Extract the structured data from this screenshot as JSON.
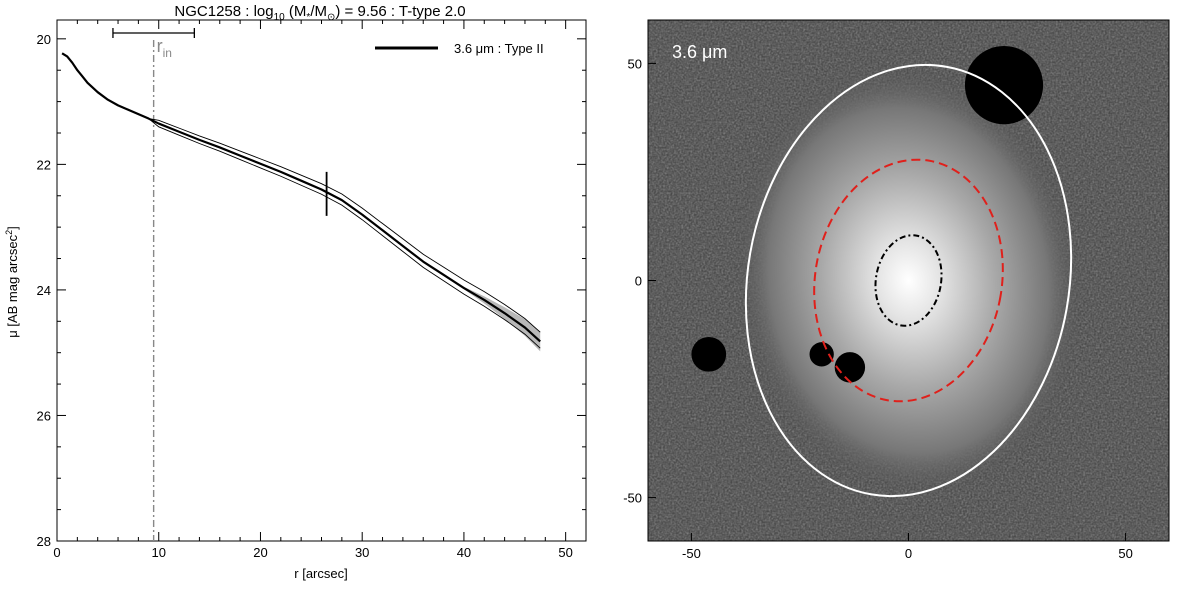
{
  "chart_data": [
    {
      "type": "line",
      "title_parts": {
        "prefix": "NGC1258 : log",
        "log_sub": "10",
        "mass_open": " (M",
        "mass_star_sub": "*",
        "mass_sep": "/M",
        "mass_sun_sub": "⊙",
        "suffix": ") = 9.56 : T-type 2.0"
      },
      "xlabel": "r [arcsec]",
      "ylabel_parts": {
        "main": "μ [AB mag arcsec",
        "sup": "2",
        "end": "]"
      },
      "xlim": [
        0,
        52
      ],
      "ylim": [
        28,
        19.7
      ],
      "y_inverted": true,
      "xticks": [
        "0",
        "10",
        "20",
        "30",
        "40",
        "50"
      ],
      "yticks": [
        "20",
        "22",
        "24",
        "26",
        "28"
      ],
      "legend": {
        "label": "3.6 μm : Type II",
        "position": "top-right"
      },
      "annotations": {
        "r_in_main": "r",
        "r_in_sub": "in",
        "r_in_value": 9.5,
        "r_in_range": [
          5.5,
          13.5
        ],
        "break_radius": 26.5,
        "break_mu": 22.47
      },
      "series": [
        {
          "name": "3.6 μm : Type II",
          "x": [
            0.5,
            1,
            1.5,
            2,
            2.5,
            3,
            4,
            5,
            6,
            7,
            8,
            9,
            10,
            12,
            14,
            16,
            18,
            20,
            22,
            24,
            26,
            28,
            30,
            32,
            34,
            36,
            38,
            40,
            42,
            44,
            46,
            47.5
          ],
          "y": [
            20.23,
            20.28,
            20.38,
            20.5,
            20.6,
            20.7,
            20.85,
            20.97,
            21.06,
            21.13,
            21.2,
            21.27,
            21.35,
            21.48,
            21.61,
            21.73,
            21.86,
            21.99,
            22.12,
            22.26,
            22.4,
            22.57,
            22.8,
            23.05,
            23.3,
            23.55,
            23.76,
            23.97,
            24.16,
            24.37,
            24.6,
            24.82
          ]
        }
      ]
    },
    {
      "type": "image",
      "band_label": "3.6 μm",
      "xlim": [
        -60,
        60
      ],
      "ylim": [
        -60,
        60
      ],
      "xticks": [
        "-50",
        "0",
        "50"
      ],
      "yticks": [
        "50",
        "0",
        "-50"
      ],
      "ellipses": [
        {
          "name": "outer",
          "color": "#ffffff",
          "style": "solid",
          "cx": 0,
          "cy": 0,
          "rx": 37,
          "ry": 50,
          "angle_deg": 10
        },
        {
          "name": "break",
          "color": "#e0201b",
          "style": "dashed",
          "cx": 0,
          "cy": 0,
          "rx": 21.5,
          "ry": 28,
          "angle_deg": 10
        },
        {
          "name": "r_in",
          "color": "#000000",
          "style": "dash-dot",
          "cx": 0,
          "cy": 0,
          "rx": 7.5,
          "ry": 10.5,
          "angle_deg": 10
        }
      ],
      "masks": [
        {
          "x": 22,
          "y": 45,
          "r": 9
        },
        {
          "x": -20,
          "y": -17,
          "r": 2.8
        },
        {
          "x": -13.5,
          "y": -20,
          "r": 3.5
        },
        {
          "x": -46,
          "y": -17,
          "r": 4
        }
      ]
    }
  ]
}
